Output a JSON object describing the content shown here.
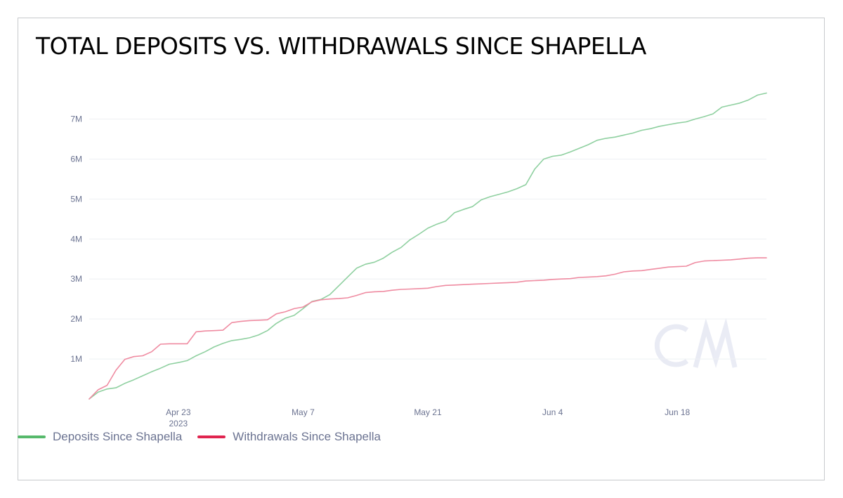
{
  "chart_data": {
    "type": "line",
    "title": "TOTAL DEPOSITS VS. WITHDRAWALS SINCE SHAPELLA",
    "xlabel": "",
    "ylabel": "",
    "x_range": [
      "2023-04-13",
      "2023-06-28"
    ],
    "ylim": [
      0,
      7800000
    ],
    "grid": true,
    "legend_position": "bottom-left",
    "y_ticks": [
      {
        "value": 1000000,
        "label": "1M"
      },
      {
        "value": 2000000,
        "label": "2M"
      },
      {
        "value": 3000000,
        "label": "3M"
      },
      {
        "value": 4000000,
        "label": "4M"
      },
      {
        "value": 5000000,
        "label": "5M"
      },
      {
        "value": 6000000,
        "label": "6M"
      },
      {
        "value": 7000000,
        "label": "7M"
      }
    ],
    "x_ticks": [
      {
        "value": "2023-04-23",
        "label": "Apr 23",
        "sublabel": "2023"
      },
      {
        "value": "2023-05-07",
        "label": "May 7",
        "sublabel": ""
      },
      {
        "value": "2023-05-21",
        "label": "May 21",
        "sublabel": ""
      },
      {
        "value": "2023-06-04",
        "label": "Jun 4",
        "sublabel": ""
      },
      {
        "value": "2023-06-18",
        "label": "Jun 18",
        "sublabel": ""
      }
    ],
    "x": [
      "2023-04-13",
      "2023-04-14",
      "2023-04-15",
      "2023-04-16",
      "2023-04-17",
      "2023-04-18",
      "2023-04-19",
      "2023-04-20",
      "2023-04-21",
      "2023-04-22",
      "2023-04-23",
      "2023-04-24",
      "2023-04-25",
      "2023-04-26",
      "2023-04-27",
      "2023-04-28",
      "2023-04-29",
      "2023-04-30",
      "2023-05-01",
      "2023-05-02",
      "2023-05-03",
      "2023-05-04",
      "2023-05-05",
      "2023-05-06",
      "2023-05-07",
      "2023-05-08",
      "2023-05-09",
      "2023-05-10",
      "2023-05-11",
      "2023-05-12",
      "2023-05-13",
      "2023-05-14",
      "2023-05-15",
      "2023-05-16",
      "2023-05-17",
      "2023-05-18",
      "2023-05-19",
      "2023-05-20",
      "2023-05-21",
      "2023-05-22",
      "2023-05-23",
      "2023-05-24",
      "2023-05-25",
      "2023-05-26",
      "2023-05-27",
      "2023-05-28",
      "2023-05-29",
      "2023-05-30",
      "2023-05-31",
      "2023-06-01",
      "2023-06-02",
      "2023-06-03",
      "2023-06-04",
      "2023-06-05",
      "2023-06-06",
      "2023-06-07",
      "2023-06-08",
      "2023-06-09",
      "2023-06-10",
      "2023-06-11",
      "2023-06-12",
      "2023-06-13",
      "2023-06-14",
      "2023-06-15",
      "2023-06-16",
      "2023-06-17",
      "2023-06-18",
      "2023-06-19",
      "2023-06-20",
      "2023-06-21",
      "2023-06-22",
      "2023-06-23",
      "2023-06-24",
      "2023-06-25",
      "2023-06-26",
      "2023-06-27",
      "2023-06-28"
    ],
    "series": [
      {
        "name": "Deposits Since Shapella",
        "color": "#8fd0a0",
        "legend_color": "#56b96b",
        "values": [
          0,
          170000,
          250000,
          280000,
          390000,
          480000,
          580000,
          680000,
          770000,
          870000,
          910000,
          960000,
          1080000,
          1180000,
          1300000,
          1390000,
          1460000,
          1490000,
          1530000,
          1600000,
          1710000,
          1890000,
          2020000,
          2090000,
          2260000,
          2440000,
          2490000,
          2610000,
          2830000,
          3050000,
          3270000,
          3370000,
          3420000,
          3520000,
          3670000,
          3790000,
          3980000,
          4120000,
          4270000,
          4370000,
          4450000,
          4660000,
          4740000,
          4810000,
          4980000,
          5060000,
          5120000,
          5180000,
          5260000,
          5360000,
          5750000,
          6000000,
          6070000,
          6100000,
          6180000,
          6270000,
          6360000,
          6470000,
          6520000,
          6550000,
          6600000,
          6650000,
          6720000,
          6760000,
          6820000,
          6860000,
          6900000,
          6930000,
          7000000,
          7060000,
          7130000,
          7300000,
          7350000,
          7400000,
          7480000,
          7600000,
          7650000
        ]
      },
      {
        "name": "Withdrawals Since Shapella",
        "color": "#ef8ba1",
        "legend_color": "#e0244f",
        "values": [
          0,
          230000,
          340000,
          720000,
          990000,
          1060000,
          1080000,
          1180000,
          1370000,
          1380000,
          1380000,
          1380000,
          1680000,
          1700000,
          1710000,
          1720000,
          1910000,
          1940000,
          1960000,
          1970000,
          1980000,
          2130000,
          2180000,
          2260000,
          2300000,
          2430000,
          2480000,
          2500000,
          2510000,
          2530000,
          2590000,
          2660000,
          2680000,
          2690000,
          2720000,
          2740000,
          2750000,
          2760000,
          2770000,
          2810000,
          2840000,
          2850000,
          2860000,
          2870000,
          2880000,
          2890000,
          2900000,
          2910000,
          2920000,
          2950000,
          2960000,
          2970000,
          2990000,
          3000000,
          3010000,
          3040000,
          3050000,
          3060000,
          3080000,
          3120000,
          3180000,
          3200000,
          3210000,
          3240000,
          3270000,
          3300000,
          3310000,
          3320000,
          3410000,
          3450000,
          3460000,
          3470000,
          3480000,
          3500000,
          3520000,
          3530000,
          3530000
        ]
      }
    ]
  }
}
